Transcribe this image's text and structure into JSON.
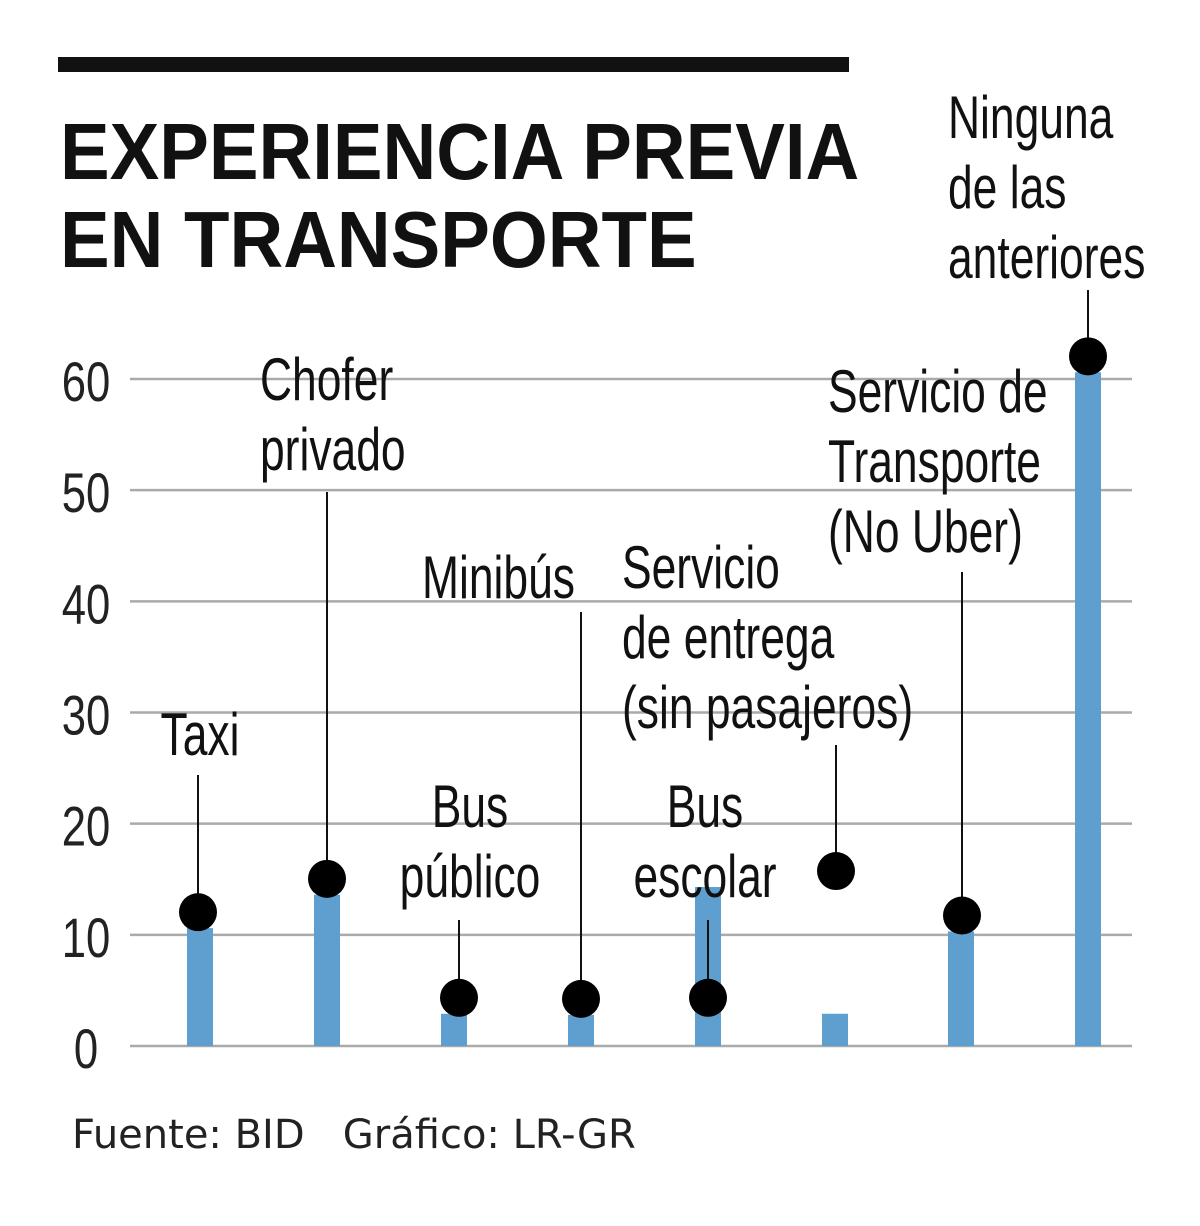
{
  "title": "EXPERIENCIA PREVIA\nEN TRANSPORTE",
  "footer": "Fuente: BID   Gráfico: LR-GR",
  "colors": {
    "bar": "#5f9fcf",
    "dot": "#000000",
    "grid": "#aaaaaa"
  },
  "chart_data": {
    "type": "bar",
    "title": "EXPERIENCIA PREVIA EN TRANSPORTE",
    "categories": [
      "Taxi",
      "Chofer privado",
      "Bus público",
      "Minibús",
      "Servicio de entrega (sin pasajeros)",
      "Bus escolar",
      "Servicio de Transporte (No Uber)",
      "Ninguna de las anteriores"
    ],
    "category_label_lines": [
      [
        "Taxi"
      ],
      [
        "Chofer",
        "privado"
      ],
      [
        "Bus",
        "público"
      ],
      [
        "Minibús"
      ],
      [
        "Servicio",
        "de entrega",
        "(sin pasajeros)"
      ],
      [
        "Bus",
        "escolar"
      ],
      [
        "Servicio de",
        "Transporte",
        "(No Uber)"
      ],
      [
        "Ninguna",
        "de las",
        "anteriores"
      ]
    ],
    "values": [
      10.6,
      13.6,
      2.9,
      2.8,
      14.3,
      2.9,
      10.3,
      60.6
    ],
    "ylim": [
      0,
      60
    ],
    "yticks": [
      "0",
      "10",
      "20",
      "30",
      "40",
      "50",
      "60"
    ],
    "grid": true,
    "xlabel": "",
    "ylabel": ""
  }
}
